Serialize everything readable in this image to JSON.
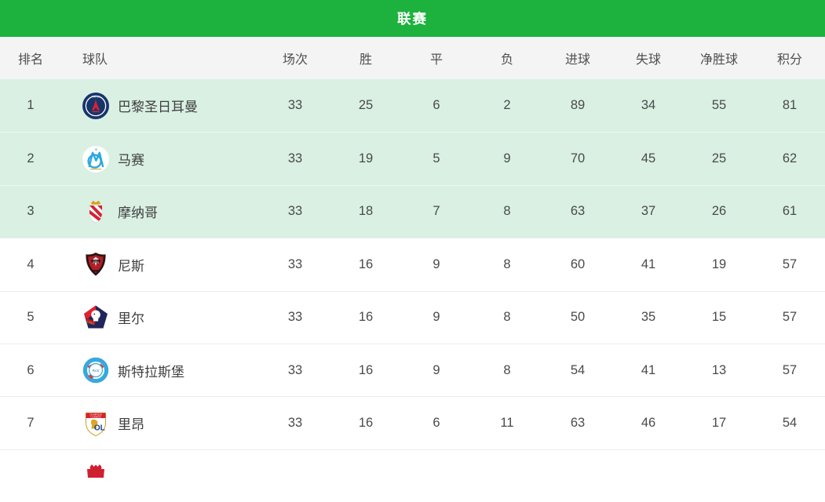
{
  "header": {
    "title": "联赛"
  },
  "columns": [
    {
      "label": "排名"
    },
    {
      "label": "球队"
    },
    {
      "label": "场次"
    },
    {
      "label": "胜"
    },
    {
      "label": "平"
    },
    {
      "label": "负"
    },
    {
      "label": "进球"
    },
    {
      "label": "失球"
    },
    {
      "label": "净胜球"
    },
    {
      "label": "积分"
    }
  ],
  "rows": [
    {
      "rank": "1",
      "team": "巴黎圣日耳曼",
      "logo": "psg",
      "played": "33",
      "win": "25",
      "draw": "6",
      "loss": "2",
      "gf": "89",
      "ga": "34",
      "gd": "55",
      "pts": "81",
      "highlight": true
    },
    {
      "rank": "2",
      "team": "马赛",
      "logo": "marseille",
      "played": "33",
      "win": "19",
      "draw": "5",
      "loss": "9",
      "gf": "70",
      "ga": "45",
      "gd": "25",
      "pts": "62",
      "highlight": true
    },
    {
      "rank": "3",
      "team": "摩纳哥",
      "logo": "monaco",
      "played": "33",
      "win": "18",
      "draw": "7",
      "loss": "8",
      "gf": "63",
      "ga": "37",
      "gd": "26",
      "pts": "61",
      "highlight": true
    },
    {
      "rank": "4",
      "team": "尼斯",
      "logo": "nice",
      "played": "33",
      "win": "16",
      "draw": "9",
      "loss": "8",
      "gf": "60",
      "ga": "41",
      "gd": "19",
      "pts": "57",
      "highlight": false
    },
    {
      "rank": "5",
      "team": "里尔",
      "logo": "lille",
      "played": "33",
      "win": "16",
      "draw": "9",
      "loss": "8",
      "gf": "50",
      "ga": "35",
      "gd": "15",
      "pts": "57",
      "highlight": false
    },
    {
      "rank": "6",
      "team": "斯特拉斯堡",
      "logo": "strasbourg",
      "played": "33",
      "win": "16",
      "draw": "9",
      "loss": "8",
      "gf": "54",
      "ga": "41",
      "gd": "13",
      "pts": "57",
      "highlight": false
    },
    {
      "rank": "7",
      "team": "里昂",
      "logo": "lyon",
      "played": "33",
      "win": "16",
      "draw": "6",
      "loss": "11",
      "gf": "63",
      "ga": "46",
      "gd": "17",
      "pts": "54",
      "highlight": false
    }
  ],
  "partial_row": {
    "rank": "",
    "team": "",
    "logo": "red-crest",
    "played": "",
    "win": "",
    "draw": "",
    "loss": "",
    "gf": "",
    "ga": "",
    "gd": "",
    "pts": "",
    "highlight": false,
    "partial": true
  },
  "colors": {
    "accent_green": "#1db13d",
    "highlight_row_bg": "#d9f0e3",
    "thead_bg": "#f4f4f4",
    "row_text": "#4a4a4a"
  }
}
